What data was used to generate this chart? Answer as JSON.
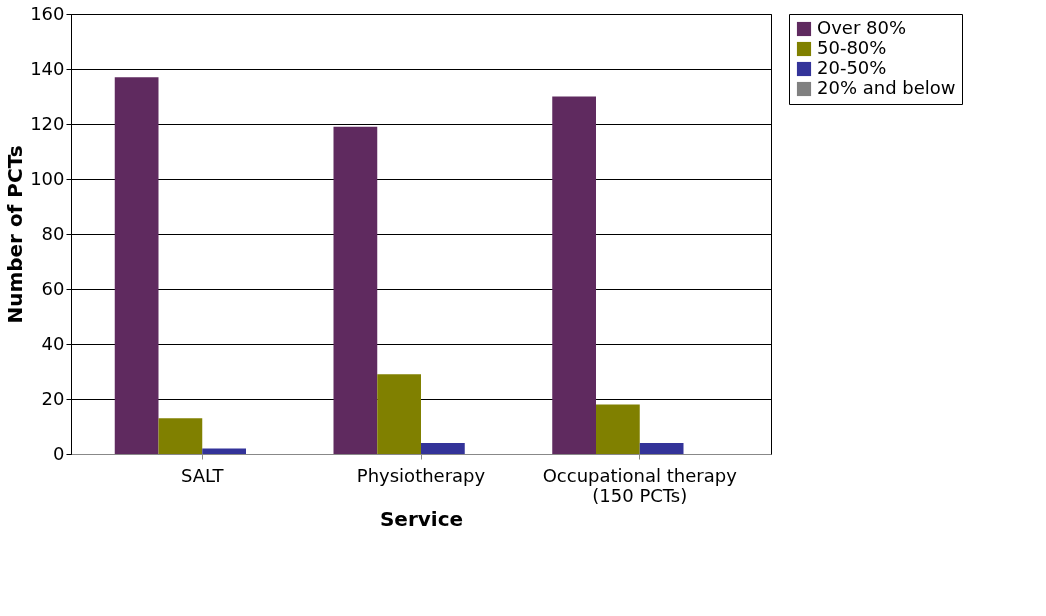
{
  "chart_data": {
    "type": "bar",
    "xlabel": "Service",
    "ylabel": "Number of PCTs",
    "categories": [
      "SALT",
      "Physiotherapy",
      "Occupational therapy\n(150 PCTs)"
    ],
    "series": [
      {
        "name": "Over 80%",
        "color": "#5f2a5f",
        "values": [
          137,
          119,
          130
        ]
      },
      {
        "name": "50-80%",
        "color": "#808000",
        "values": [
          13,
          29,
          18
        ]
      },
      {
        "name": "20-50%",
        "color": "#333399",
        "values": [
          2,
          4,
          4
        ]
      },
      {
        "name": "20% and below",
        "color": "#808080",
        "values": [
          0,
          0,
          0
        ]
      }
    ],
    "ylim": [
      0,
      160
    ],
    "yticks": [
      0,
      20,
      40,
      60,
      80,
      100,
      120,
      140,
      160
    ],
    "grid": "y",
    "legend": "top right"
  }
}
